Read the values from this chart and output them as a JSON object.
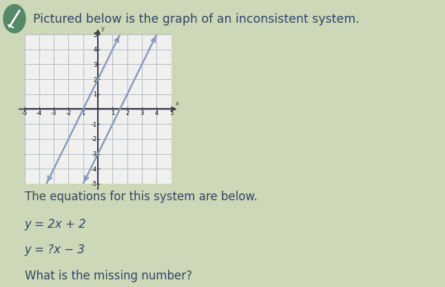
{
  "title": "Pictured below is the graph of an inconsistent system.",
  "line1_slope": 2,
  "line1_intercept": 2,
  "line2_slope": 2,
  "line2_intercept": -3,
  "xlim": [
    -5,
    5
  ],
  "ylim": [
    -5,
    5
  ],
  "grid_color": "#aab0cc",
  "line_color": "#8899bb",
  "axis_color": "#333344",
  "bg_color": "#ccd8b8",
  "graph_bg": "#f0f0ee",
  "text_color": "#334466",
  "title_fontsize": 12.5,
  "body_fontsize": 12,
  "tick_fontsize": 6,
  "equations_intro": "The equations for this system are below.",
  "eq1_text": "y = 2x + 2",
  "eq2_text": "y = ?x − 3",
  "question_text": "What is the missing number?"
}
